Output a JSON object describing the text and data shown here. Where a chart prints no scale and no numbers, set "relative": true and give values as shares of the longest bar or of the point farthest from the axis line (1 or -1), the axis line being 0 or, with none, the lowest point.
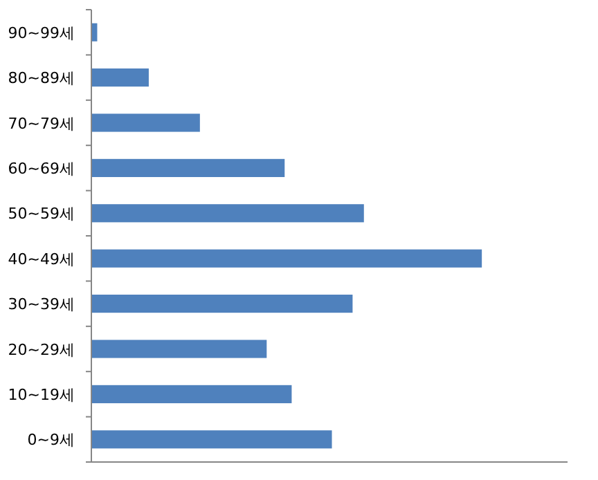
{
  "chart_data": {
    "type": "bar",
    "orientation": "horizontal",
    "relative": true,
    "categories": [
      "90~99세",
      "80~89세",
      "70~79세",
      "60~69세",
      "50~59세",
      "40~49세",
      "30~39세",
      "20~29세",
      "10~19세",
      "0~9세"
    ],
    "values": [
      0.015,
      0.147,
      0.278,
      0.495,
      0.698,
      1,
      0.669,
      0.449,
      0.513,
      0.616
    ],
    "color": "#4f81bd"
  }
}
